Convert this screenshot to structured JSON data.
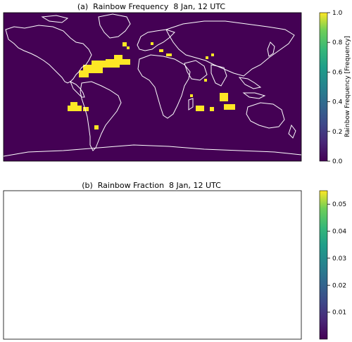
{
  "panel_a": {
    "title": "(a)  Rainbow Frequency  8 Jan, 12 UTC",
    "colorbar": {
      "ticks": [
        "0.0",
        "0.2",
        "0.4",
        "0.6",
        "0.8",
        "1.0"
      ],
      "label": "Rainbow Frequency [Frequency]",
      "range": [
        0.0,
        1.0
      ]
    },
    "background_color": "#440154",
    "coastline_color": "#ffffff"
  },
  "panel_b": {
    "title": "(b)  Rainbow Fraction  8 Jan, 12 UTC",
    "colorbar": {
      "ticks": [
        "0.01",
        "0.02",
        "0.03",
        "0.04",
        "0.05"
      ],
      "range": [
        0.0,
        0.055
      ]
    },
    "background_color": "#ffffff",
    "coastline_color": "#888888"
  },
  "colormap": "viridis",
  "colors": {
    "viridis_low": "#440154",
    "viridis_mid": "#21918c",
    "viridis_high": "#fde725"
  }
}
